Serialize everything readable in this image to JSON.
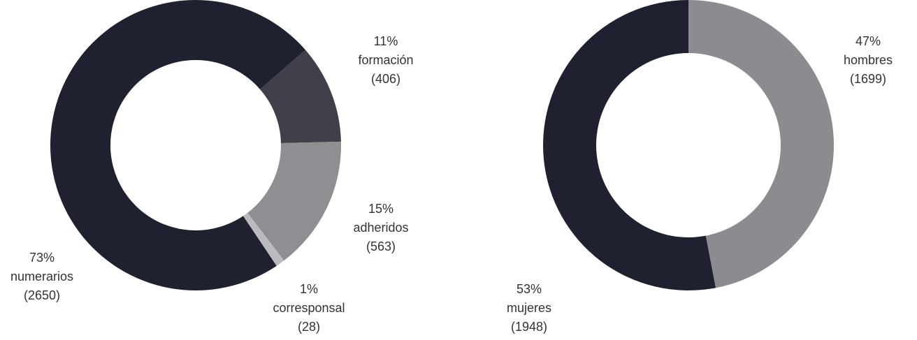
{
  "chart_data": [
    {
      "type": "pie",
      "categories": [
        "formación",
        "adheridos",
        "corresponsal",
        "numerarios"
      ],
      "values": [
        11,
        15,
        1,
        73
      ],
      "value_labels": [
        "11%",
        "15%",
        "1%",
        "73%"
      ],
      "counts": [
        406,
        563,
        28,
        2650
      ],
      "count_labels": [
        "(406)",
        "(563)",
        "(28)",
        "(2650)"
      ],
      "colors": [
        "#40404a",
        "#8e8e93",
        "#babac0",
        "#1f2030"
      ]
    },
    {
      "type": "pie",
      "categories": [
        "hombres",
        "mujeres"
      ],
      "values": [
        47,
        53
      ],
      "value_labels": [
        "47%",
        "53%"
      ],
      "counts": [
        1699,
        1948
      ],
      "count_labels": [
        "(1699)",
        "(1948)"
      ],
      "colors": [
        "#8b8b90",
        "#1f2030"
      ]
    }
  ]
}
